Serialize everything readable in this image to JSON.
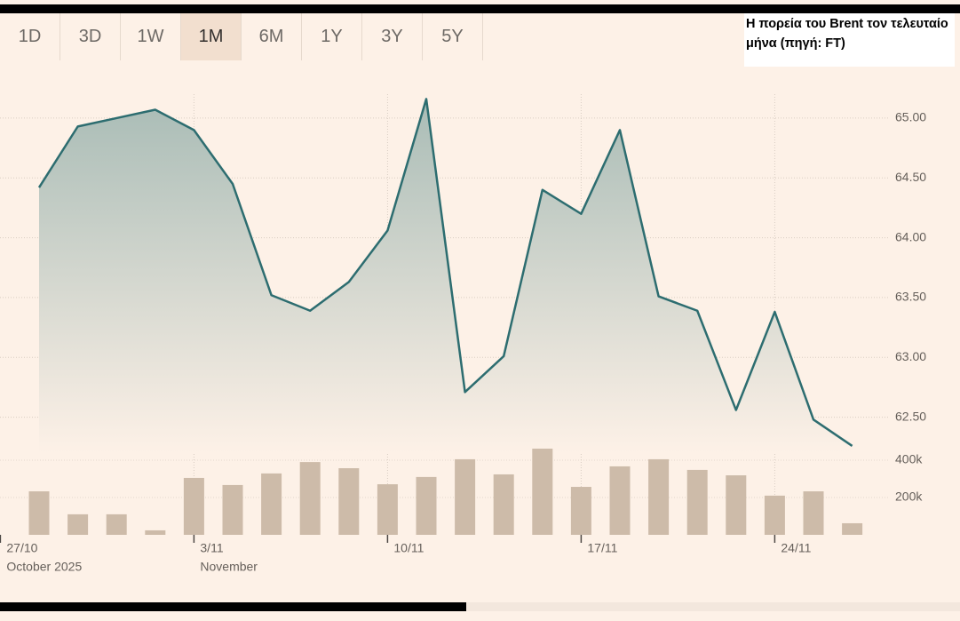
{
  "toolbar": {
    "tabs": [
      "1D",
      "3D",
      "1W",
      "1M",
      "6M",
      "1Y",
      "3Y",
      "5Y"
    ],
    "active": 3
  },
  "annotation": "Η πορεία του Brent τον τελευταίο μήνα (πηγή: FT)",
  "chart_data": {
    "type": "line",
    "x": [
      "2025-10-28",
      "2025-10-29",
      "2025-10-30",
      "2025-10-31",
      "2025-11-03",
      "2025-11-04",
      "2025-11-05",
      "2025-11-06",
      "2025-11-07",
      "2025-11-10",
      "2025-11-11",
      "2025-11-12",
      "2025-11-13",
      "2025-11-14",
      "2025-11-17",
      "2025-11-18",
      "2025-11-19",
      "2025-11-20",
      "2025-11-21",
      "2025-11-24",
      "2025-11-25",
      "2025-11-26"
    ],
    "series": [
      {
        "type": "area",
        "color": "#2d6d70",
        "area_color": "#a9bcb6",
        "values": [
          64.42,
          64.93,
          65.0,
          65.07,
          64.9,
          64.45,
          63.52,
          63.39,
          63.63,
          64.06,
          65.16,
          62.71,
          63.01,
          64.4,
          64.2,
          64.9,
          63.51,
          63.39,
          62.56,
          63.38,
          62.48,
          62.26
        ]
      },
      {
        "type": "bar",
        "axis": "y2",
        "color": "#cdbba9",
        "values": [
          233000,
          110000,
          110000,
          24000,
          305000,
          267000,
          329000,
          390000,
          357000,
          271000,
          310000,
          405000,
          324000,
          462000,
          257000,
          367000,
          405000,
          348000,
          319000,
          210000,
          233000,
          62000
        ]
      }
    ],
    "ylim": [
      62.2,
      65.2
    ],
    "yticks": [
      {
        "value": 62.5,
        "label": "62.50"
      },
      {
        "value": 63,
        "label": "63.00"
      },
      {
        "value": 63.5,
        "label": "63.50"
      },
      {
        "value": 64,
        "label": "64.00"
      },
      {
        "value": 64.5,
        "label": "64.50"
      },
      {
        "value": 65,
        "label": "65.00"
      }
    ],
    "y2lim": [
      0,
      500000
    ],
    "y2ticks": [
      {
        "value": 200000,
        "label": "200k"
      },
      {
        "value": 400000,
        "label": "400k"
      }
    ],
    "xticks": [
      {
        "value": "2025-10-27",
        "label": "27/10"
      },
      {
        "value": "2025-11-03",
        "label": "3/11"
      },
      {
        "value": "2025-11-10",
        "label": "10/11"
      },
      {
        "value": "2025-11-17",
        "label": "17/11"
      },
      {
        "value": "2025-11-24",
        "label": "24/11"
      }
    ],
    "month_labels": [
      {
        "value": "2025-10-27",
        "label": "October 2025"
      },
      {
        "value": "2025-11-03",
        "label": "November"
      }
    ],
    "grid": true
  }
}
